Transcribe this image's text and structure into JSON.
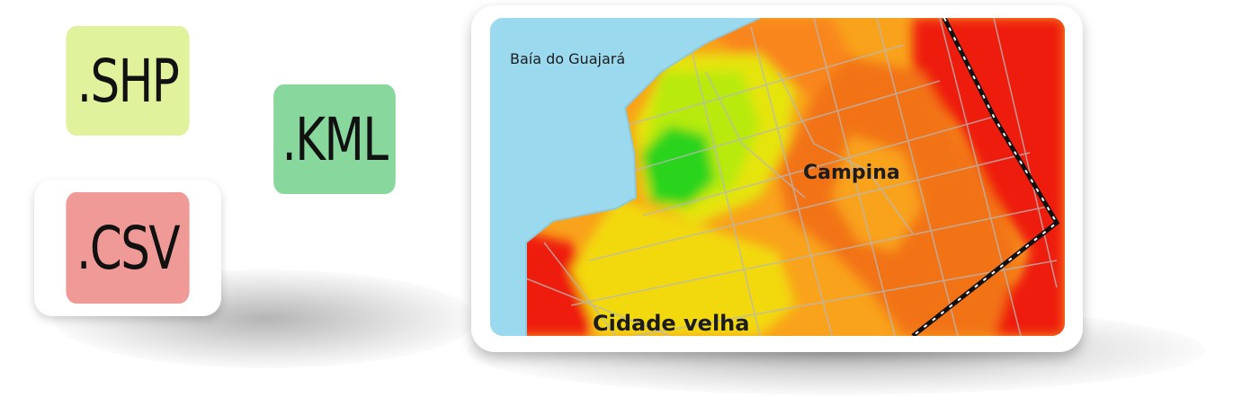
{
  "file_formats": {
    "shp": ".SHP",
    "kml": ".KML",
    "csv": ".CSV"
  },
  "map": {
    "labels": {
      "bay": "Baía do Guajará",
      "district_1": "Campina",
      "district_2": "Cidade velha"
    }
  },
  "colors": {
    "shp_tile": "#e0f29c",
    "kml_tile": "#88d89d",
    "csv_tile": "#f09a98",
    "water": "#9bd9ef",
    "heat_red": "#ee1b10",
    "heat_orange": "#f9861a",
    "heat_yellow": "#e6e40c",
    "heat_green": "#2bd41b"
  },
  "icons": [
    "shp-file-icon",
    "kml-file-icon",
    "csv-file-icon",
    "heatmap-thumbnail"
  ]
}
